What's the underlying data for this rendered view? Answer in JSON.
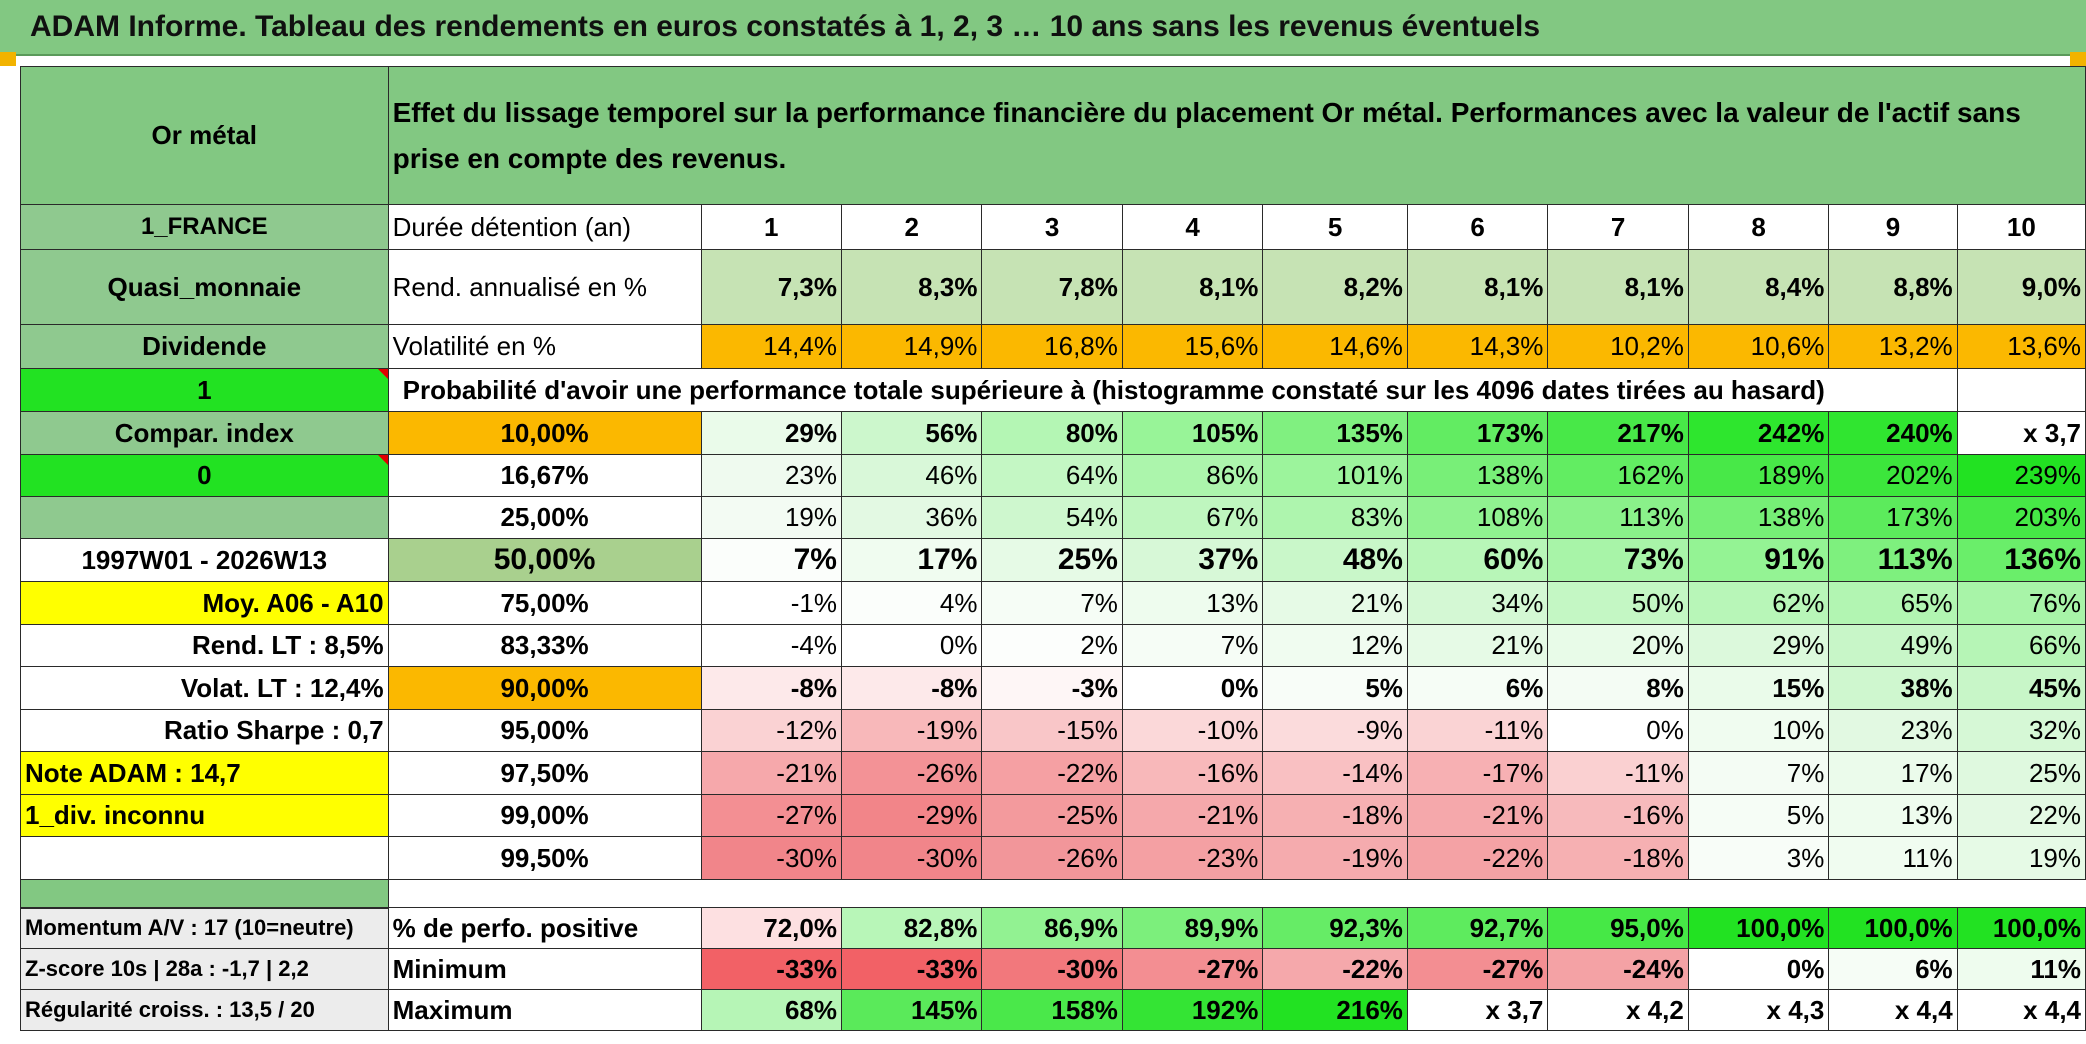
{
  "title": "ADAM Informe. Tableau des rendements en euros constatés à 1, 2, 3 … 10 ans sans les revenus éventuels",
  "asset_name": "Or métal",
  "description": "Effet du lissage temporel sur la performance financière du placement Or métal. Performances avec la valeur de l'actif sans prise en compte des revenus.",
  "left": {
    "country": "1_FRANCE",
    "category": "Quasi_monnaie",
    "dividend_label": "Dividende",
    "value_1": "1",
    "compar_index": "Compar. index",
    "value_0": "0",
    "period": "1997W01 - 2026W13",
    "moy": "Moy. A06 - A10",
    "rend_lt": "Rend. LT :   8,5%",
    "volat_lt": "Volat. LT :   12,4%",
    "sharpe": "Ratio Sharpe :    0,7",
    "note": "Note ADAM : 14,7",
    "div": "1_div. inconnu",
    "momentum": "Momentum A/V : 17 (10=neutre)",
    "zscore": "Z-score 10s | 28a : -1,7 | 2,2",
    "regularite": "Régularité croiss. : 13,5 / 20"
  },
  "years_label": "Durée détention (an)",
  "years": [
    "1",
    "2",
    "3",
    "4",
    "5",
    "6",
    "7",
    "8",
    "9",
    "10"
  ],
  "rend": {
    "label": "Rend. annualisé en %",
    "values": [
      "7,3%",
      "8,3%",
      "7,8%",
      "8,1%",
      "8,2%",
      "8,1%",
      "8,1%",
      "8,4%",
      "8,8%",
      "9,0%"
    ]
  },
  "volat": {
    "label": "Volatilité en %",
    "values": [
      "14,4%",
      "14,9%",
      "16,8%",
      "15,6%",
      "14,6%",
      "14,3%",
      "10,2%",
      "10,6%",
      "13,2%",
      "13,6%"
    ]
  },
  "prob_header": "Probabilité d'avoir une performance totale supérieure à (histogramme constaté sur les 4096 dates tirées au hasard)",
  "quantiles": [
    {
      "p": "10,00%",
      "values": [
        "29%",
        "56%",
        "80%",
        "105%",
        "135%",
        "173%",
        "217%",
        "242%",
        "240%",
        "x 3,7"
      ]
    },
    {
      "p": "16,67%",
      "values": [
        "23%",
        "46%",
        "64%",
        "86%",
        "101%",
        "138%",
        "162%",
        "189%",
        "202%",
        "239%"
      ]
    },
    {
      "p": "25,00%",
      "values": [
        "19%",
        "36%",
        "54%",
        "67%",
        "83%",
        "108%",
        "113%",
        "138%",
        "173%",
        "203%"
      ]
    },
    {
      "p": "50,00%",
      "values": [
        "7%",
        "17%",
        "25%",
        "37%",
        "48%",
        "60%",
        "73%",
        "91%",
        "113%",
        "136%"
      ]
    },
    {
      "p": "75,00%",
      "values": [
        "-1%",
        "4%",
        "7%",
        "13%",
        "21%",
        "34%",
        "50%",
        "62%",
        "65%",
        "76%"
      ]
    },
    {
      "p": "83,33%",
      "values": [
        "-4%",
        "0%",
        "2%",
        "7%",
        "12%",
        "21%",
        "20%",
        "29%",
        "49%",
        "66%"
      ]
    },
    {
      "p": "90,00%",
      "values": [
        "-8%",
        "-8%",
        "-3%",
        "0%",
        "5%",
        "6%",
        "8%",
        "15%",
        "38%",
        "45%"
      ]
    },
    {
      "p": "95,00%",
      "values": [
        "-12%",
        "-19%",
        "-15%",
        "-10%",
        "-9%",
        "-11%",
        "0%",
        "10%",
        "23%",
        "32%"
      ]
    },
    {
      "p": "97,50%",
      "values": [
        "-21%",
        "-26%",
        "-22%",
        "-16%",
        "-14%",
        "-17%",
        "-11%",
        "7%",
        "17%",
        "25%"
      ]
    },
    {
      "p": "99,00%",
      "values": [
        "-27%",
        "-29%",
        "-25%",
        "-21%",
        "-18%",
        "-21%",
        "-16%",
        "5%",
        "13%",
        "22%"
      ]
    },
    {
      "p": "99,50%",
      "values": [
        "-30%",
        "-30%",
        "-26%",
        "-23%",
        "-19%",
        "-22%",
        "-18%",
        "3%",
        "11%",
        "19%"
      ]
    }
  ],
  "positive": {
    "label": "% de perfo. positive",
    "values": [
      "72,0%",
      "82,8%",
      "86,9%",
      "89,9%",
      "92,3%",
      "92,7%",
      "95,0%",
      "100,0%",
      "100,0%",
      "100,0%"
    ]
  },
  "minimum": {
    "label": "Minimum",
    "values": [
      "-33%",
      "-33%",
      "-30%",
      "-27%",
      "-22%",
      "-27%",
      "-24%",
      "0%",
      "6%",
      "11%"
    ]
  },
  "maximum": {
    "label": "Maximum",
    "values": [
      "68%",
      "145%",
      "158%",
      "192%",
      "216%",
      "x 3,7",
      "x 4,2",
      "x 4,3",
      "x 4,4",
      "x 4,4"
    ]
  },
  "colors": {
    "header_green": "#82c882",
    "label_green": "#8fc98f",
    "rend_green": "#c6e3b4",
    "orange": "#fbb800",
    "bright_green": "#22e222",
    "yellow": "#ffff00",
    "red_text": "#e01010",
    "median_green": "#a9d08e",
    "grey": "#ececec"
  },
  "cell_colors": {
    "quantiles": [
      [
        "#eafbea",
        "#ccf7cc",
        "#b4f6b4",
        "#98f498",
        "#80f080",
        "#62ec62",
        "#48e848",
        "#2ee62e",
        "#30e530",
        "#ffffff"
      ],
      [
        "#effaef",
        "#d9f8d9",
        "#c4f7c4",
        "#acf5ac",
        "#9cf49c",
        "#78ef78",
        "#62ed62",
        "#48e848",
        "#3ce63c",
        "#22e222"
      ],
      [
        "#f3fbf3",
        "#e3f9e3",
        "#cef7ce",
        "#bff6bf",
        "#aef5ae",
        "#90f290",
        "#8af18a",
        "#76ef76",
        "#5ceb5c",
        "#46e846"
      ],
      [
        "#fbfefb",
        "#f0fcf0",
        "#e6fae6",
        "#d7f8d7",
        "#c9f7c9",
        "#b8f6b8",
        "#a8f4a8",
        "#94f394",
        "#7ef07e",
        "#6aee6a"
      ],
      [
        "#ffffff",
        "#fbfefb",
        "#f6fdf6",
        "#eefcee",
        "#e6fae6",
        "#d4f8d4",
        "#c4f7c4",
        "#b8f6b8",
        "#b2f5b2",
        "#a8f4a8"
      ],
      [
        "#ffffff",
        "#ffffff",
        "#fcfefc",
        "#f6fdf6",
        "#f0fcf0",
        "#e6fae6",
        "#e8fbe8",
        "#dcf9dc",
        "#c8f6c8",
        "#b6f5b6"
      ],
      [
        "#fde9ea",
        "#fde9ea",
        "#fef6f6",
        "#ffffff",
        "#f8fdf8",
        "#f6fdf6",
        "#f4fcf4",
        "#eafbea",
        "#cff7cf",
        "#c8f6c8"
      ],
      [
        "#fad2d3",
        "#f8b8ba",
        "#f9c6c8",
        "#fbd8d9",
        "#fbdbdc",
        "#fad3d4",
        "#ffffff",
        "#f0fcf0",
        "#e2f9e2",
        "#d6f8d6"
      ],
      [
        "#f6a8ab",
        "#f39296",
        "#f5a0a3",
        "#f8b8ba",
        "#f9c0c2",
        "#f7b0b3",
        "#fad0d1",
        "#f4fcf4",
        "#ebfbeb",
        "#dff9df"
      ],
      [
        "#f38f93",
        "#f28589",
        "#f39a9d",
        "#f5a8ab",
        "#f6b0b2",
        "#f5a8ab",
        "#f7babc",
        "#f6fdf6",
        "#eefcee",
        "#e3f9e3"
      ],
      [
        "#f1858a",
        "#f1858a",
        "#f2969a",
        "#f4a0a3",
        "#f5abae",
        "#f4a2a5",
        "#f6b0b2",
        "#f8fdf8",
        "#f0fcf0",
        "#e6fae6"
      ]
    ],
    "positive": [
      "#fde0e1",
      "#b8f6b8",
      "#92f292",
      "#7cef7c",
      "#66ec66",
      "#5eeb5e",
      "#46e846",
      "#22e222",
      "#22e222",
      "#22e222"
    ],
    "minimum": [
      "#f26166",
      "#f26166",
      "#f2787c",
      "#f38e92",
      "#f5a8ab",
      "#f38e92",
      "#f4a2a5",
      "#ffffff",
      "#f6fdf6",
      "#eefcee"
    ],
    "maximum": [
      "#b6f5b6",
      "#5aea5a",
      "#4ae84a",
      "#34e434",
      "#22e222",
      "#ffffff",
      "#ffffff",
      "#ffffff",
      "#ffffff",
      "#ffffff"
    ]
  }
}
